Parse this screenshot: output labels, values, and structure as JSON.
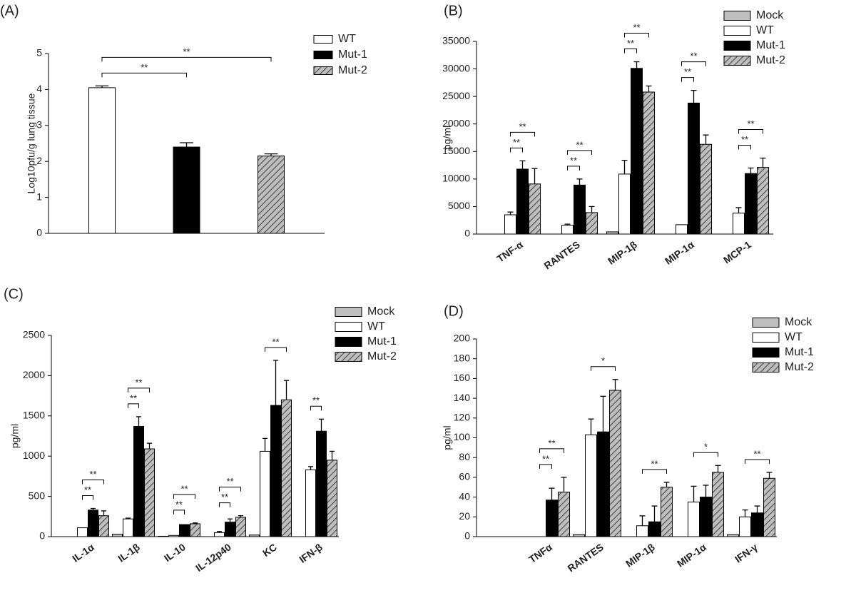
{
  "chart_data": [
    {
      "type": "bar",
      "title": "(A)",
      "ylabel": "Log10pfu/g lung tissue",
      "categories": [
        null
      ],
      "series": [
        {
          "name": "WT",
          "color": "#ffffff",
          "values": [
            4.05
          ],
          "errors": [
            0.05
          ]
        },
        {
          "name": "Mut-1",
          "color": "#000000",
          "values": [
            2.4
          ],
          "errors": [
            0.12
          ]
        },
        {
          "name": "Mut-2",
          "color": "#bfbfbf",
          "pattern": "hatch",
          "values": [
            2.15
          ],
          "errors": [
            0.06
          ]
        }
      ],
      "ylim": [
        0,
        5
      ],
      "yticks": [
        0,
        1,
        2,
        3,
        4,
        5
      ],
      "annotations": [
        {
          "text": "**",
          "between": [
            "WT",
            "Mut-1"
          ]
        },
        {
          "text": "**",
          "between": [
            "WT",
            "Mut-2"
          ]
        }
      ]
    },
    {
      "type": "bar",
      "title": "(B)",
      "ylabel": "pg/ml",
      "categories": [
        "TNF-α",
        "RANTES",
        "MIP-1β",
        "MIP-1α",
        "MCP-1"
      ],
      "series": [
        {
          "name": "Mock",
          "color": "#bfbfbf",
          "values": [
            0,
            0,
            400,
            0,
            0
          ],
          "errors": [
            null,
            null,
            null,
            null,
            null
          ]
        },
        {
          "name": "WT",
          "color": "#ffffff",
          "values": [
            3500,
            1600,
            10900,
            1700,
            3800
          ],
          "errors": [
            500,
            200,
            2500,
            null,
            1000
          ]
        },
        {
          "name": "Mut-1",
          "color": "#000000",
          "values": [
            11800,
            8900,
            30100,
            23800,
            11000
          ],
          "errors": [
            1500,
            1100,
            1200,
            2300,
            1000
          ]
        },
        {
          "name": "Mut-2",
          "color": "#bfbfbf",
          "pattern": "hatch",
          "values": [
            9100,
            3900,
            25800,
            16300,
            12100
          ],
          "errors": [
            2800,
            1100,
            1100,
            1700,
            1700
          ]
        }
      ],
      "ylim": [
        0,
        35000
      ],
      "yticks": [
        0,
        5000,
        10000,
        15000,
        20000,
        25000,
        30000,
        35000
      ],
      "annotations": [
        {
          "text": "**",
          "category": "TNF-α",
          "between": [
            "WT",
            "Mut-1"
          ]
        },
        {
          "text": "**",
          "category": "TNF-α",
          "between": [
            "WT",
            "Mut-2"
          ]
        },
        {
          "text": "**",
          "category": "RANTES",
          "between": [
            "WT",
            "Mut-1"
          ]
        },
        {
          "text": "**",
          "category": "RANTES",
          "between": [
            "WT",
            "Mut-2"
          ]
        },
        {
          "text": "**",
          "category": "MIP-1β",
          "between": [
            "WT",
            "Mut-1"
          ]
        },
        {
          "text": "**",
          "category": "MIP-1β",
          "between": [
            "WT",
            "Mut-2"
          ]
        },
        {
          "text": "**",
          "category": "MIP-1α",
          "between": [
            "WT",
            "Mut-1"
          ]
        },
        {
          "text": "**",
          "category": "MIP-1α",
          "between": [
            "WT",
            "Mut-2"
          ]
        },
        {
          "text": "**",
          "category": "MCP-1",
          "between": [
            "WT",
            "Mut-1"
          ]
        },
        {
          "text": "**",
          "category": "MCP-1",
          "between": [
            "WT",
            "Mut-2"
          ]
        }
      ]
    },
    {
      "type": "bar",
      "title": "(C)",
      "ylabel": "pg/ml",
      "categories": [
        "IL-1α",
        "IL-1β",
        "IL-10",
        "IL-12p40",
        "KC",
        "IFN-β"
      ],
      "series": [
        {
          "name": "Mock",
          "color": "#bfbfbf",
          "values": [
            0,
            30,
            5,
            0,
            20,
            0
          ],
          "errors": [
            null,
            null,
            null,
            null,
            null,
            null
          ]
        },
        {
          "name": "WT",
          "color": "#ffffff",
          "values": [
            110,
            220,
            15,
            50,
            1060,
            830
          ],
          "errors": [
            null,
            10,
            null,
            15,
            160,
            40
          ]
        },
        {
          "name": "Mut-1",
          "color": "#000000",
          "values": [
            330,
            1370,
            150,
            180,
            1630,
            1310
          ],
          "errors": [
            20,
            120,
            null,
            40,
            560,
            150
          ]
        },
        {
          "name": "Mut-2",
          "color": "#bfbfbf",
          "pattern": "hatch",
          "values": [
            260,
            1090,
            160,
            240,
            1700,
            950
          ],
          "errors": [
            60,
            70,
            10,
            20,
            240,
            110
          ]
        }
      ],
      "ylim": [
        0,
        2500
      ],
      "yticks": [
        0,
        500,
        1000,
        1500,
        2000,
        2500
      ],
      "annotations": [
        {
          "text": "**",
          "category": "IL-1α",
          "between": [
            "WT",
            "Mut-1"
          ]
        },
        {
          "text": "**",
          "category": "IL-1α",
          "between": [
            "WT",
            "Mut-2"
          ]
        },
        {
          "text": "**",
          "category": "IL-1β",
          "between": [
            "WT",
            "Mut-1"
          ]
        },
        {
          "text": "**",
          "category": "IL-1β",
          "between": [
            "WT",
            "Mut-2"
          ]
        },
        {
          "text": "**",
          "category": "IL-10",
          "between": [
            "WT",
            "Mut-1"
          ]
        },
        {
          "text": "**",
          "category": "IL-10",
          "between": [
            "WT",
            "Mut-2"
          ]
        },
        {
          "text": "**",
          "category": "IL-12p40",
          "between": [
            "WT",
            "Mut-1"
          ]
        },
        {
          "text": "**",
          "category": "IL-12p40",
          "between": [
            "WT",
            "Mut-2"
          ]
        },
        {
          "text": "**",
          "category": "KC",
          "between": [
            "WT",
            "Mut-2"
          ]
        },
        {
          "text": "**",
          "category": "IFN-β",
          "between": [
            "WT",
            "Mut-1"
          ]
        }
      ]
    },
    {
      "type": "bar",
      "title": "(D)",
      "ylabel": "pg/ml",
      "categories": [
        "TNFα",
        "RANTES",
        "MIP-1β",
        "MIP-1α",
        "IFN-γ"
      ],
      "series": [
        {
          "name": "Mock",
          "color": "#bfbfbf",
          "values": [
            0,
            2,
            0,
            0,
            2
          ],
          "errors": [
            null,
            null,
            null,
            null,
            null
          ]
        },
        {
          "name": "WT",
          "color": "#ffffff",
          "values": [
            0,
            103,
            11,
            35,
            20
          ],
          "errors": [
            null,
            16,
            10,
            16,
            7
          ]
        },
        {
          "name": "Mut-1",
          "color": "#000000",
          "values": [
            37,
            106,
            15,
            40,
            24
          ],
          "errors": [
            12,
            36,
            16,
            12,
            7
          ]
        },
        {
          "name": "Mut-2",
          "color": "#bfbfbf",
          "pattern": "hatch",
          "values": [
            45,
            148,
            50,
            65,
            59
          ],
          "errors": [
            15,
            11,
            5,
            7,
            6
          ]
        }
      ],
      "ylim": [
        0,
        200
      ],
      "yticks": [
        0,
        20,
        40,
        60,
        80,
        100,
        120,
        140,
        160,
        180,
        200
      ],
      "annotations": [
        {
          "text": "**",
          "category": "TNFα",
          "between": [
            "WT",
            "Mut-1"
          ]
        },
        {
          "text": "**",
          "category": "TNFα",
          "between": [
            "WT",
            "Mut-2"
          ]
        },
        {
          "text": "*",
          "category": "RANTES",
          "between": [
            "WT",
            "Mut-2"
          ]
        },
        {
          "text": "**",
          "category": "MIP-1β",
          "between": [
            "WT",
            "Mut-2"
          ]
        },
        {
          "text": "*",
          "category": "MIP-1α",
          "between": [
            "WT",
            "Mut-2"
          ]
        },
        {
          "text": "**",
          "category": "IFN-γ",
          "between": [
            "WT",
            "Mut-2"
          ]
        }
      ]
    }
  ]
}
